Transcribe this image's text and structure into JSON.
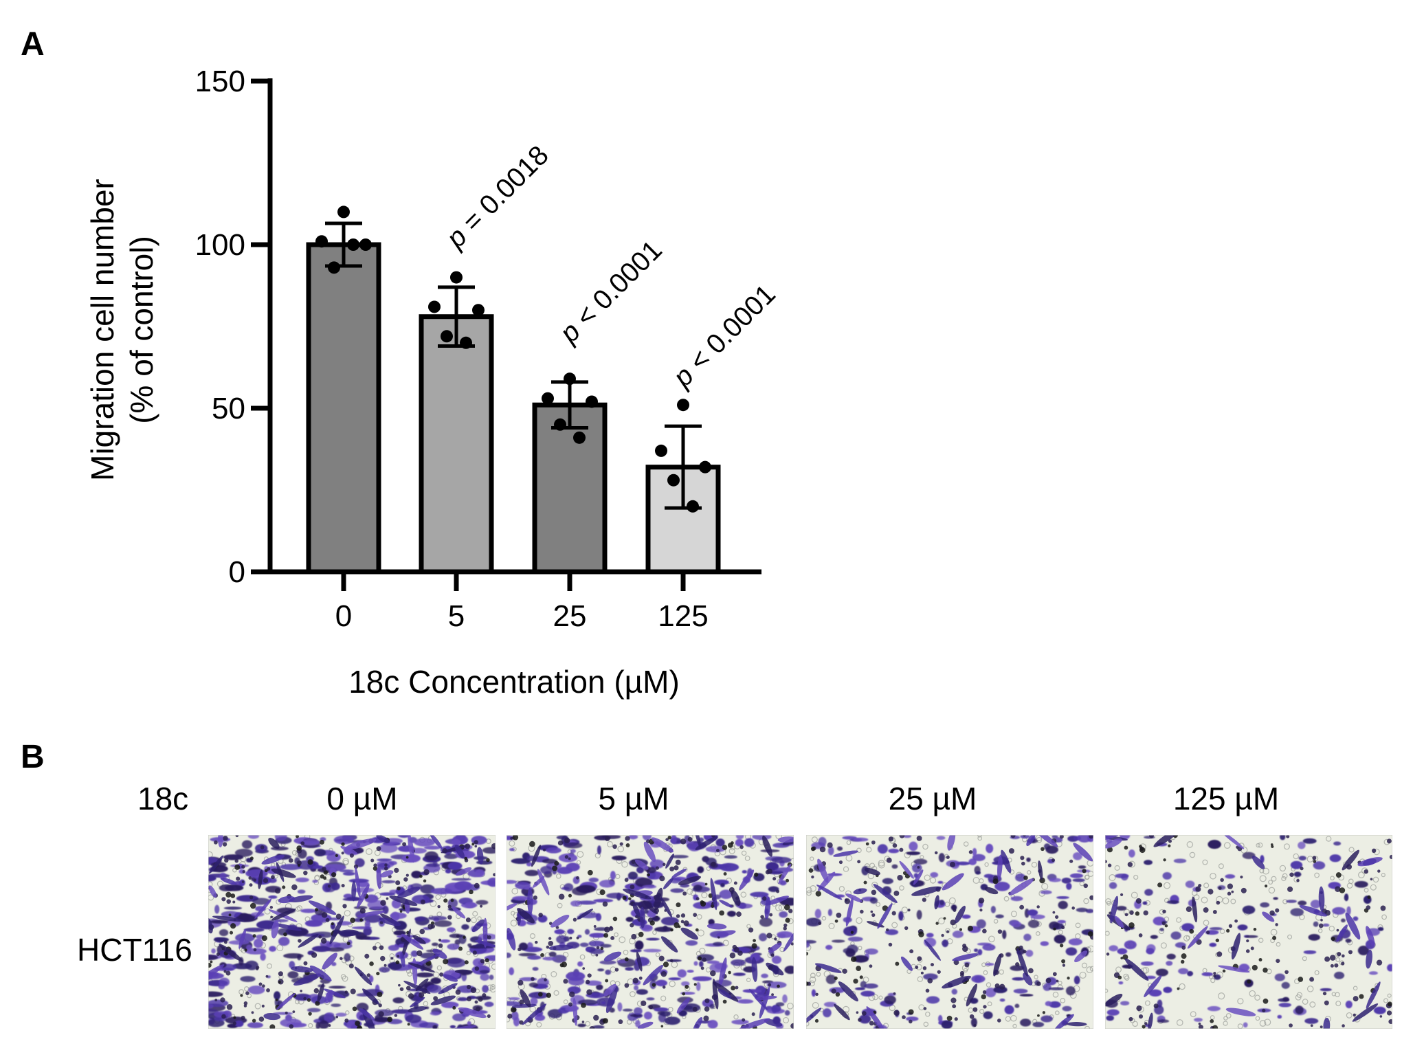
{
  "panel_a_label": "A",
  "panel_b_label": "B",
  "chart_data": {
    "type": "bar",
    "title": "",
    "xlabel": "18c Concentration (µM)",
    "ylabel": "Migration cell number",
    "ylabel2": "(% of control)",
    "ylim": [
      0,
      150
    ],
    "yticks": [
      0,
      50,
      100,
      150
    ],
    "categories": [
      "0",
      "5",
      "25",
      "125"
    ],
    "values": [
      100,
      78,
      51,
      32
    ],
    "errors": [
      6.5,
      9,
      7,
      12.5
    ],
    "bar_colors": [
      "#808080",
      "#a6a6a6",
      "#808080",
      "#d6d6d6"
    ],
    "points": [
      [
        110,
        101,
        100,
        93,
        100
      ],
      [
        90,
        81,
        80,
        72,
        70
      ],
      [
        59,
        53,
        52,
        45,
        41
      ],
      [
        51,
        37,
        32,
        28,
        20
      ]
    ],
    "annotations": [
      {
        "category": "5",
        "italic": "p",
        "text": " = 0.0018"
      },
      {
        "category": "25",
        "italic": "p",
        "text": " < 0.0001"
      },
      {
        "category": "125",
        "italic": "p",
        "text": " < 0.0001"
      }
    ]
  },
  "panel_b": {
    "compound_label": "18c",
    "row_label": "HCT116",
    "columns": [
      "0 µM",
      "5 µM",
      "25 µM",
      "125 µM"
    ],
    "stain_density": [
      1.0,
      0.8,
      0.45,
      0.3
    ]
  }
}
